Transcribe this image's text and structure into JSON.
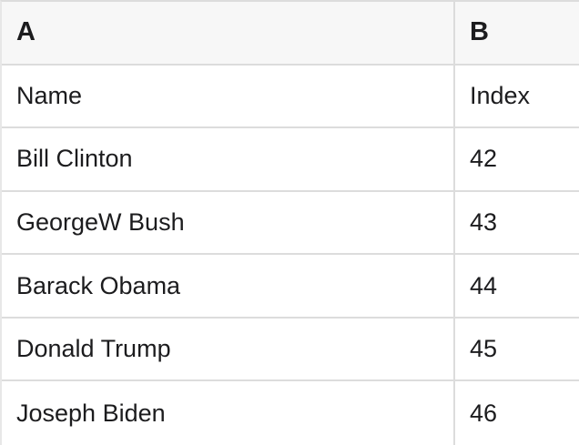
{
  "colors": {
    "header_bg": "#f7f7f7",
    "border": "#dcdcdc",
    "border_light": "#e7e7e7",
    "text": "#1c1c1e"
  },
  "table": {
    "column_headers": [
      "A",
      "B"
    ],
    "rows": [
      [
        "Name",
        "Index"
      ],
      [
        "Bill Clinton",
        "42"
      ],
      [
        "GeorgeW Bush",
        "43"
      ],
      [
        "Barack Obama",
        "44"
      ],
      [
        "Donald Trump",
        "45"
      ],
      [
        "Joseph Biden",
        "46"
      ]
    ]
  }
}
